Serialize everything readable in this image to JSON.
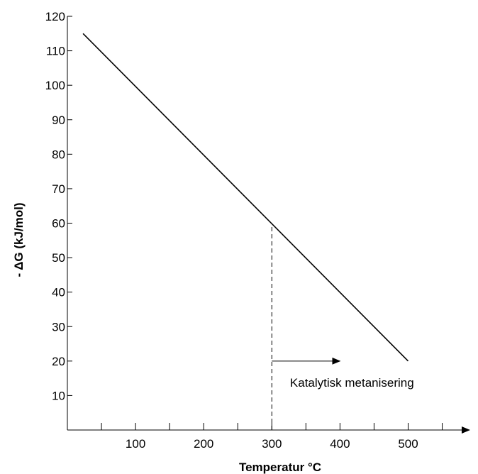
{
  "chart_data": {
    "type": "line",
    "title": "",
    "xlabel": "Temperatur °C",
    "ylabel": "- ΔG (kJ/mol)",
    "xlim": [
      0,
      590
    ],
    "ylim": [
      0,
      120
    ],
    "x_ticks": [
      50,
      100,
      150,
      200,
      250,
      300,
      350,
      400,
      450,
      500,
      550
    ],
    "x_tick_labels": [
      {
        "value": 100,
        "label": "100"
      },
      {
        "value": 200,
        "label": "200"
      },
      {
        "value": 300,
        "label": "300"
      },
      {
        "value": 400,
        "label": "400"
      },
      {
        "value": 500,
        "label": "500"
      }
    ],
    "y_ticks": [
      10,
      20,
      30,
      40,
      50,
      60,
      70,
      80,
      90,
      100,
      110,
      120
    ],
    "y_tick_labels": [
      {
        "value": 10,
        "label": "10"
      },
      {
        "value": 20,
        "label": "20"
      },
      {
        "value": 30,
        "label": "30"
      },
      {
        "value": 40,
        "label": "40"
      },
      {
        "value": 50,
        "label": "50"
      },
      {
        "value": 60,
        "label": "60"
      },
      {
        "value": 70,
        "label": "70"
      },
      {
        "value": 80,
        "label": "80"
      },
      {
        "value": 90,
        "label": "90"
      },
      {
        "value": 100,
        "label": "100"
      },
      {
        "value": 110,
        "label": "110"
      },
      {
        "value": 120,
        "label": "120"
      }
    ],
    "series": [
      {
        "x": [
          23,
          500
        ],
        "y": [
          115,
          20
        ]
      }
    ],
    "grid": false,
    "legend": "none",
    "annotations": {
      "dashed_line": {
        "x": 300,
        "y_from": 0,
        "y_to": 60
      },
      "arrow": {
        "x_from": 300,
        "x_to": 400,
        "y": 20
      },
      "label": {
        "text": "Katalytisk metanisering",
        "x": 310,
        "y": 13
      }
    },
    "colors": {
      "line": "#000000",
      "axis": "#000000"
    }
  }
}
